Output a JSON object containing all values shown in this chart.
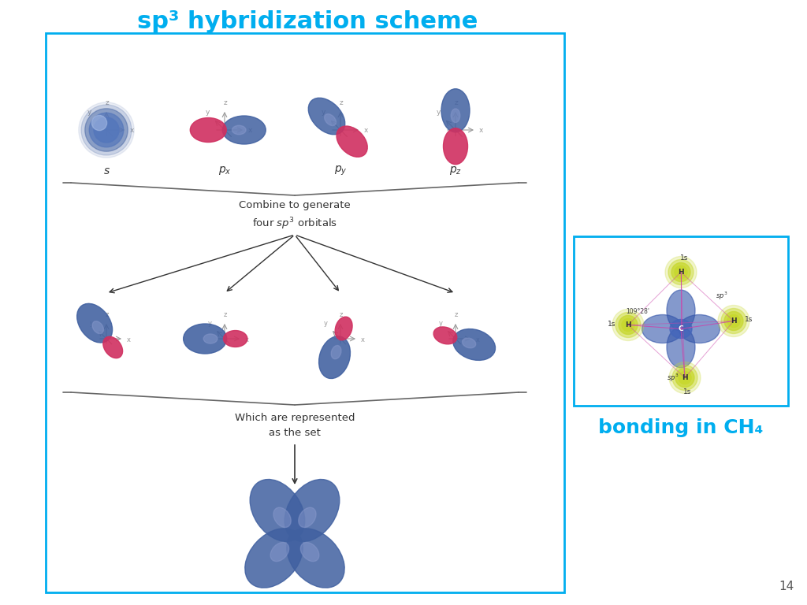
{
  "title": "sp³ hybridization scheme",
  "title_color": "#00AEEF",
  "title_fontsize": 22,
  "bonding_title": "bonding in CH₄",
  "bonding_color": "#00AEEF",
  "bonding_fontsize": 18,
  "page_num": "14",
  "main_box_color": "#00AEEF",
  "bg_color": "#ffffff",
  "orbital_blue": "#4060A0",
  "orbital_blue2": "#5577BB",
  "orbital_red": "#D03060",
  "combine_text": "Combine to generate\nfour $sp^3$ orbitals",
  "represented_text": "Which are represented\nas the set",
  "axis_color": "#999999",
  "text_color": "#333333",
  "brace_color": "#666666"
}
